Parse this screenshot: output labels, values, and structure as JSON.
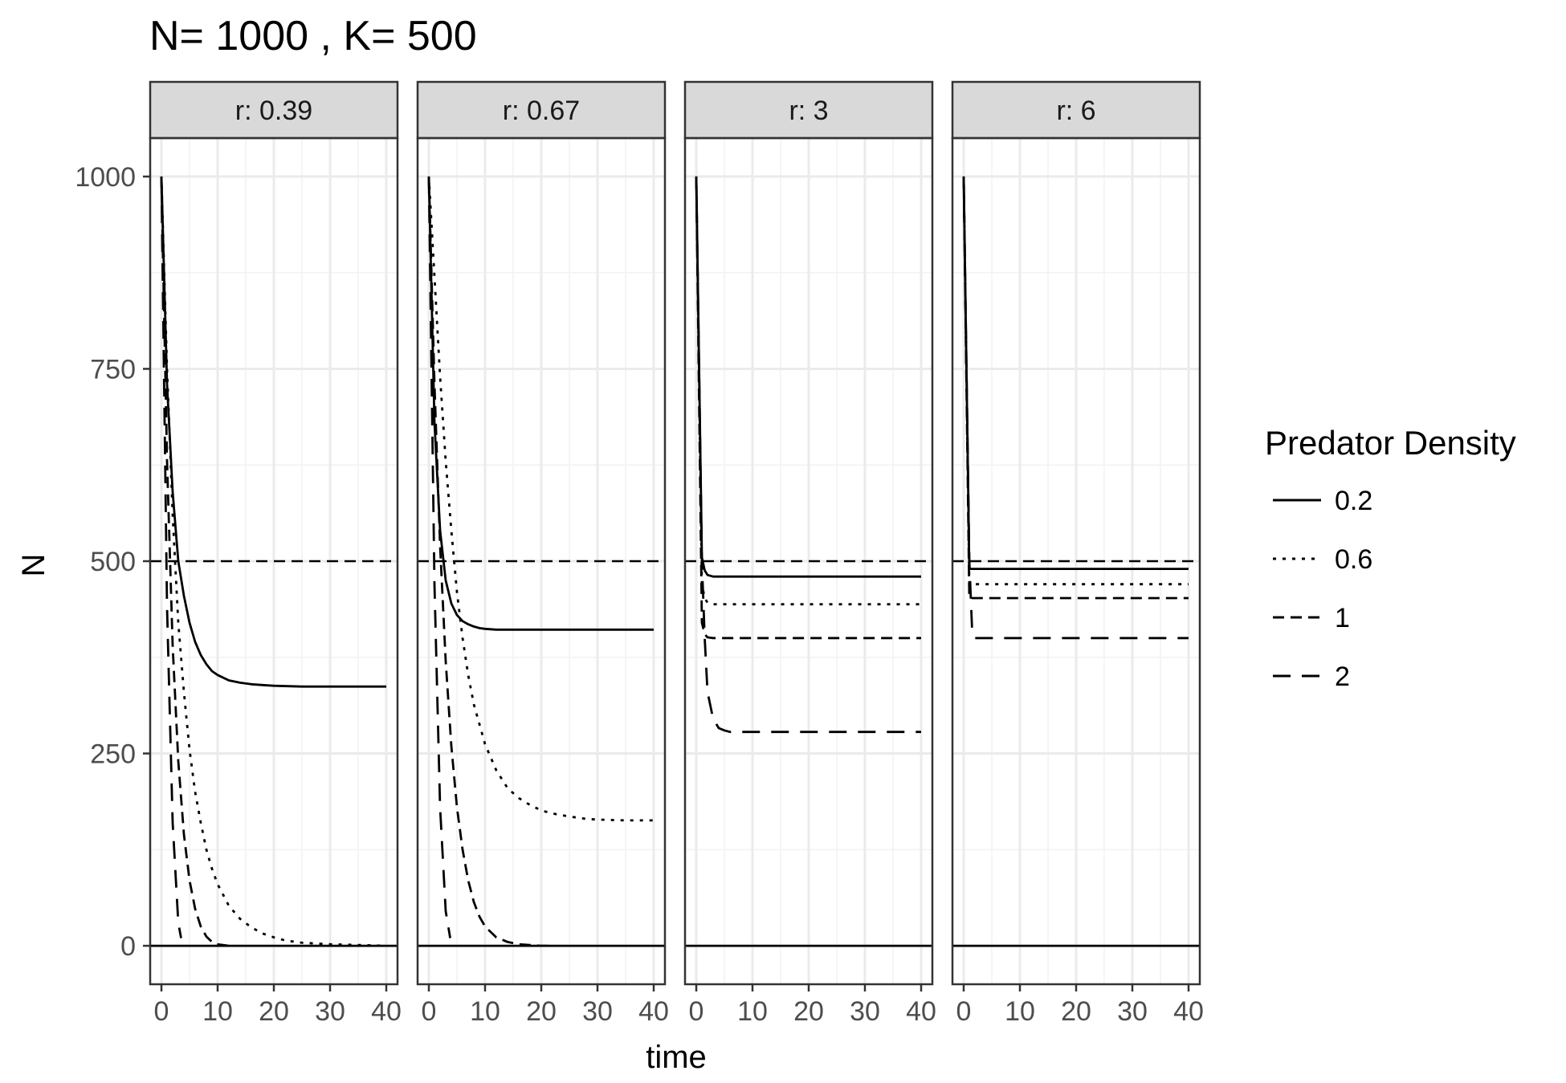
{
  "chart_data": {
    "type": "line",
    "title": "N= 1000 , K= 500",
    "xlabel": "time",
    "ylabel": "N",
    "xlim": [
      -2,
      42
    ],
    "ylim": [
      -50,
      1050
    ],
    "x_ticks": [
      0,
      10,
      20,
      30,
      40
    ],
    "y_ticks": [
      0,
      250,
      500,
      750,
      1000
    ],
    "grid": true,
    "reference_line": {
      "y": 500,
      "style": "dashed"
    },
    "legend": {
      "title": "Predator Density",
      "placement": "right",
      "entries": [
        {
          "label": "0.2",
          "dash": "solid"
        },
        {
          "label": "0.6",
          "dash": "dotted"
        },
        {
          "label": "1",
          "dash": "dashed"
        },
        {
          "label": "2",
          "dash": "longdash"
        }
      ]
    },
    "facets": [
      {
        "label": "r: 0.39",
        "series": [
          {
            "name": "0.2",
            "x": [
              0,
              1,
              2,
              3,
              4,
              5,
              6,
              7,
              8,
              9,
              10,
              12,
              14,
              16,
              18,
              20,
              25,
              30,
              35,
              40
            ],
            "y": [
              1000,
              730,
              590,
              500,
              455,
              420,
              395,
              378,
              366,
              357,
              352,
              345,
              342,
              340,
              339,
              338,
              337,
              337,
              337,
              337
            ]
          },
          {
            "name": "0.6",
            "x": [
              0,
              1,
              2,
              3,
              4,
              5,
              6,
              7,
              8,
              9,
              10,
              12,
              14,
              16,
              18,
              20,
              22,
              25,
              30,
              35,
              40
            ],
            "y": [
              1000,
              750,
              560,
              420,
              330,
              255,
              200,
              160,
              125,
              100,
              80,
              52,
              35,
              24,
              16,
              11,
              7,
              4,
              2,
              1,
              0
            ]
          },
          {
            "name": "1",
            "x": [
              0,
              1,
              2,
              3,
              4,
              5,
              6,
              7,
              8,
              9,
              10,
              12
            ],
            "y": [
              1000,
              630,
              390,
              240,
              145,
              85,
              48,
              25,
              12,
              5,
              2,
              0
            ]
          },
          {
            "name": "2",
            "x": [
              0,
              1,
              2,
              3,
              3.5
            ],
            "y": [
              1000,
              440,
              160,
              30,
              10
            ]
          },
          {
            "name": "0.2",
            "x": [
              -2,
              42
            ],
            "y": [
              0,
              0
            ]
          }
        ]
      },
      {
        "label": "r: 0.67",
        "series": [
          {
            "name": "0.2",
            "x": [
              0,
              1,
              2,
              3,
              4,
              5,
              6,
              7,
              8,
              9,
              10,
              12,
              14,
              16,
              18,
              20,
              25,
              30,
              35,
              40
            ],
            "y": [
              1000,
              680,
              540,
              475,
              445,
              430,
              422,
              418,
              415,
              413,
              412,
              411,
              411,
              411,
              411,
              411,
              411,
              411,
              411,
              411
            ]
          },
          {
            "name": "0.6",
            "x": [
              0,
              1,
              2,
              3,
              4,
              5,
              6,
              7,
              8,
              10,
              12,
              14,
              16,
              18,
              20,
              22,
              25,
              28,
              30,
              35,
              40
            ],
            "y": [
              1000,
              870,
              740,
              630,
              540,
              460,
              400,
              352,
              314,
              262,
              228,
              205,
              192,
              183,
              176,
              172,
              168,
              165,
              164,
              163,
              163
            ]
          },
          {
            "name": "1",
            "x": [
              0,
              1,
              2,
              3,
              4,
              5,
              6,
              7,
              8,
              9,
              10,
              12,
              14,
              16,
              18,
              20,
              22
            ],
            "y": [
              1000,
              730,
              520,
              370,
              260,
              180,
              125,
              85,
              57,
              38,
              25,
              11,
              5,
              2,
              1,
              0,
              0
            ]
          },
          {
            "name": "2",
            "x": [
              0,
              1,
              2,
              3,
              3.8
            ],
            "y": [
              1000,
              470,
              180,
              45,
              10
            ]
          },
          {
            "name": "0.2",
            "x": [
              -2,
              42
            ],
            "y": [
              0,
              0
            ]
          }
        ]
      },
      {
        "label": "r: 3",
        "series": [
          {
            "name": "0.2",
            "x": [
              0,
              1,
              1.5,
              2,
              3,
              40
            ],
            "y": [
              1000,
              505,
              488,
              482,
              480,
              480
            ]
          },
          {
            "name": "0.6",
            "x": [
              0,
              1,
              1.5,
              2,
              3,
              40
            ],
            "y": [
              1000,
              470,
              452,
              446,
              444,
              444
            ]
          },
          {
            "name": "1",
            "x": [
              0,
              1,
              1.5,
              2,
              3,
              40
            ],
            "y": [
              1000,
              420,
              405,
              401,
              400,
              400
            ]
          },
          {
            "name": "2",
            "x": [
              0,
              1,
              1.5,
              2,
              3,
              4,
              5,
              6,
              40
            ],
            "y": [
              1000,
              500,
              400,
              330,
              295,
              283,
              280,
              278,
              278
            ]
          },
          {
            "name": "0.2",
            "x": [
              -2,
              42
            ],
            "y": [
              0,
              0
            ]
          }
        ]
      },
      {
        "label": "r: 6",
        "series": [
          {
            "name": "0.2",
            "x": [
              0,
              1,
              2,
              40
            ],
            "y": [
              1000,
              490,
              490,
              490
            ]
          },
          {
            "name": "0.6",
            "x": [
              0,
              1,
              2,
              40
            ],
            "y": [
              1000,
              470,
              470,
              470
            ]
          },
          {
            "name": "1",
            "x": [
              0,
              1,
              2,
              40
            ],
            "y": [
              1000,
              452,
              452,
              452
            ]
          },
          {
            "name": "2",
            "x": [
              0,
              1,
              1.5,
              2,
              40
            ],
            "y": [
              1000,
              500,
              410,
              400,
              400
            ]
          },
          {
            "name": "0.2",
            "x": [
              -2,
              42
            ],
            "y": [
              0,
              0
            ]
          }
        ]
      }
    ]
  }
}
